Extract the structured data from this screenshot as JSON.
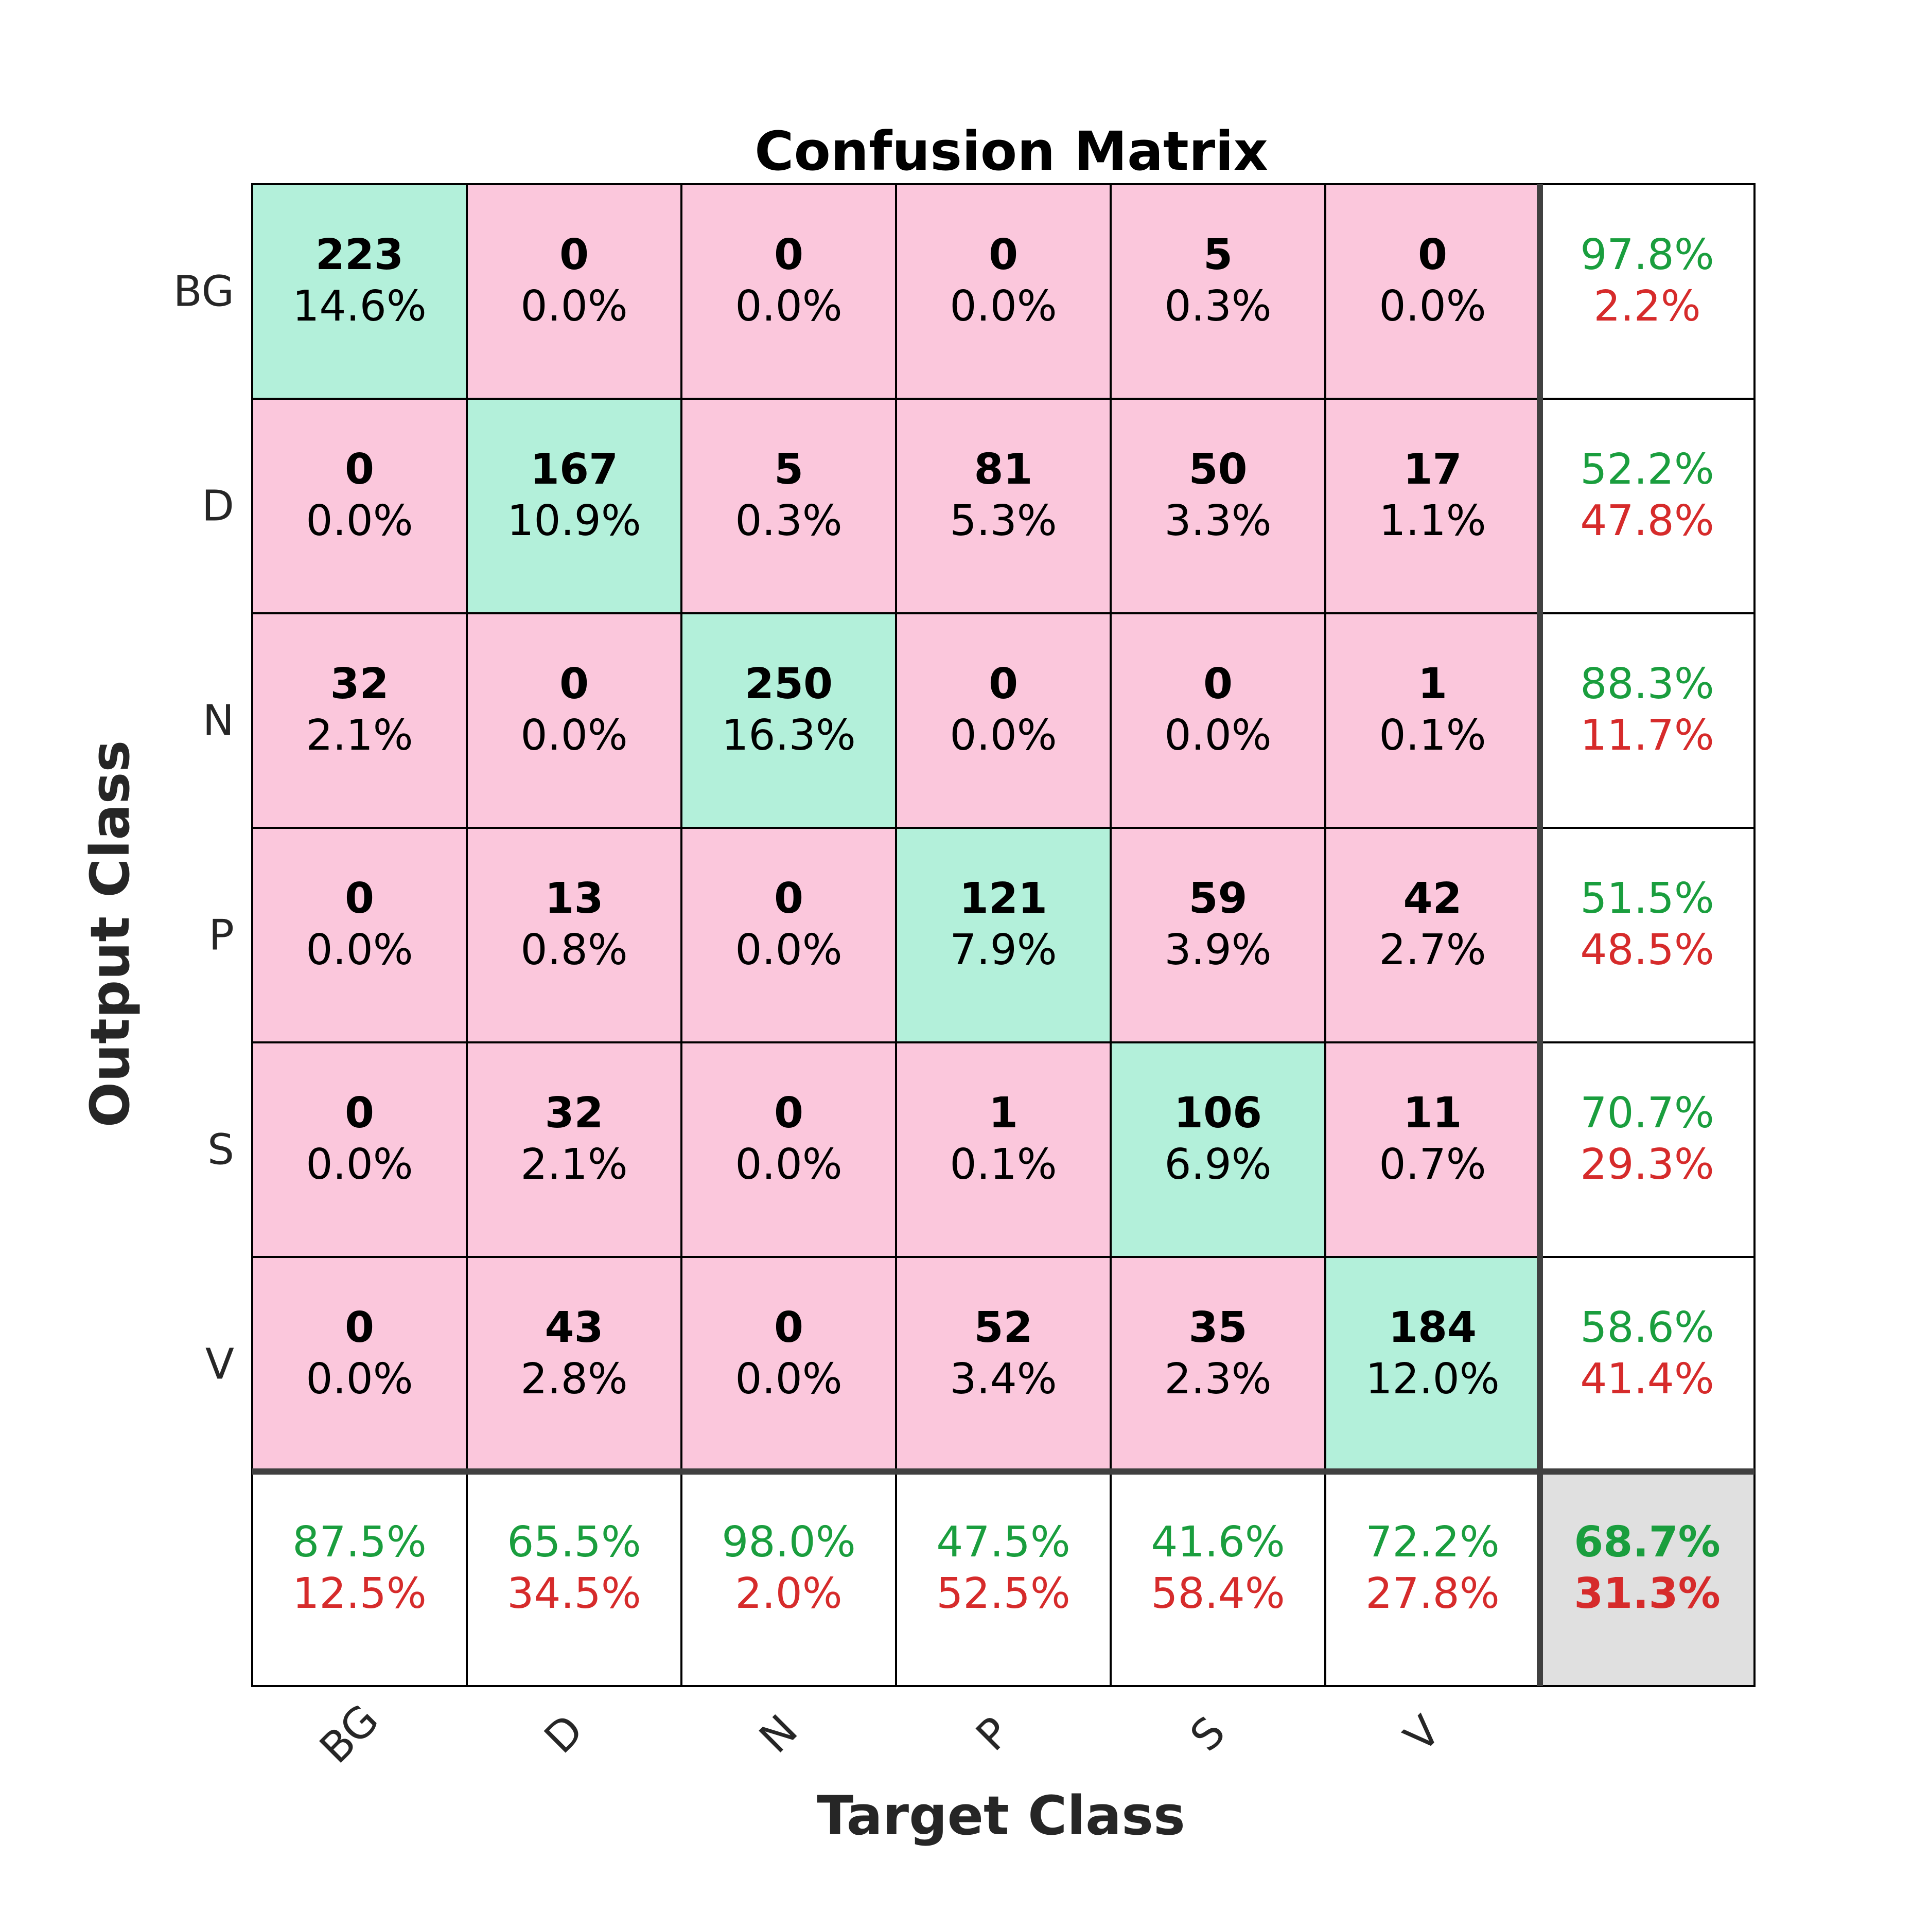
{
  "chart_data": {
    "type": "heatmap",
    "title": "Confusion Matrix",
    "xlabel": "Target Class",
    "ylabel": "Output Class",
    "classes": [
      "BG",
      "D",
      "N",
      "P",
      "S",
      "V"
    ],
    "matrix": [
      [
        223,
        0,
        0,
        0,
        5,
        0
      ],
      [
        0,
        167,
        5,
        81,
        50,
        17
      ],
      [
        32,
        0,
        250,
        0,
        0,
        1
      ],
      [
        0,
        13,
        0,
        121,
        59,
        42
      ],
      [
        0,
        32,
        0,
        1,
        106,
        11
      ],
      [
        0,
        43,
        0,
        52,
        35,
        184
      ]
    ],
    "matrix_pct": [
      [
        "14.6%",
        "0.0%",
        "0.0%",
        "0.0%",
        "0.3%",
        "0.0%"
      ],
      [
        "0.0%",
        "10.9%",
        "0.3%",
        "5.3%",
        "3.3%",
        "1.1%"
      ],
      [
        "2.1%",
        "0.0%",
        "16.3%",
        "0.0%",
        "0.0%",
        "0.1%"
      ],
      [
        "0.0%",
        "0.8%",
        "0.0%",
        "7.9%",
        "3.9%",
        "2.7%"
      ],
      [
        "0.0%",
        "2.1%",
        "0.0%",
        "0.1%",
        "6.9%",
        "0.7%"
      ],
      [
        "0.0%",
        "2.8%",
        "0.0%",
        "3.4%",
        "2.3%",
        "12.0%"
      ]
    ],
    "row_summary": [
      [
        "97.8%",
        "2.2%"
      ],
      [
        "52.2%",
        "47.8%"
      ],
      [
        "88.3%",
        "11.7%"
      ],
      [
        "51.5%",
        "48.5%"
      ],
      [
        "70.7%",
        "29.3%"
      ],
      [
        "58.6%",
        "41.4%"
      ]
    ],
    "col_summary": [
      [
        "87.5%",
        "12.5%"
      ],
      [
        "65.5%",
        "34.5%"
      ],
      [
        "98.0%",
        "2.0%"
      ],
      [
        "47.5%",
        "52.5%"
      ],
      [
        "41.6%",
        "58.4%"
      ],
      [
        "72.2%",
        "27.8%"
      ]
    ],
    "overall": [
      "68.7%",
      "31.3%"
    ],
    "colors": {
      "correct": "#b3f0da",
      "incorrect": "#fbc7dc",
      "summary": "#ffffff",
      "overall": "#e0e0e0",
      "green_text": "#1a9e3e",
      "red_text": "#d62b2b"
    }
  }
}
